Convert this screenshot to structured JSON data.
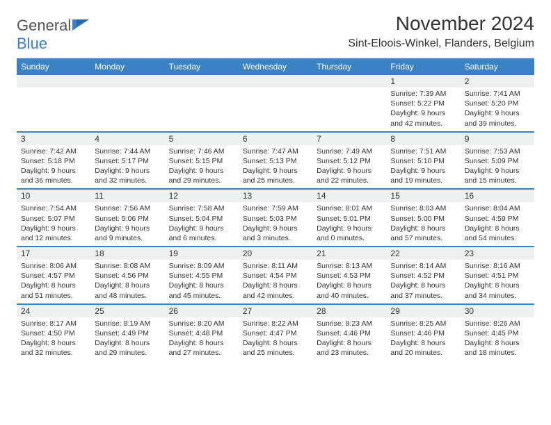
{
  "logo": {
    "text_general": "General",
    "text_blue": "Blue"
  },
  "title": "November 2024",
  "location": "Sint-Eloois-Winkel, Flanders, Belgium",
  "colors": {
    "header_blue": "#3b82c4",
    "shade": "#eef0f0",
    "text": "#333333",
    "logo_gray": "#555555",
    "logo_blue": "#3b7fc4"
  },
  "days": [
    "Sunday",
    "Monday",
    "Tuesday",
    "Wednesday",
    "Thursday",
    "Friday",
    "Saturday"
  ],
  "weeks": [
    {
      "nums": [
        "",
        "",
        "",
        "",
        "",
        "1",
        "2"
      ],
      "cells": [
        "",
        "",
        "",
        "",
        "",
        "Sunrise: 7:39 AM\nSunset: 5:22 PM\nDaylight: 9 hours and 42 minutes.",
        "Sunrise: 7:41 AM\nSunset: 5:20 PM\nDaylight: 9 hours and 39 minutes."
      ]
    },
    {
      "nums": [
        "3",
        "4",
        "5",
        "6",
        "7",
        "8",
        "9"
      ],
      "cells": [
        "Sunrise: 7:42 AM\nSunset: 5:18 PM\nDaylight: 9 hours and 36 minutes.",
        "Sunrise: 7:44 AM\nSunset: 5:17 PM\nDaylight: 9 hours and 32 minutes.",
        "Sunrise: 7:46 AM\nSunset: 5:15 PM\nDaylight: 9 hours and 29 minutes.",
        "Sunrise: 7:47 AM\nSunset: 5:13 PM\nDaylight: 9 hours and 25 minutes.",
        "Sunrise: 7:49 AM\nSunset: 5:12 PM\nDaylight: 9 hours and 22 minutes.",
        "Sunrise: 7:51 AM\nSunset: 5:10 PM\nDaylight: 9 hours and 19 minutes.",
        "Sunrise: 7:53 AM\nSunset: 5:09 PM\nDaylight: 9 hours and 15 minutes."
      ]
    },
    {
      "nums": [
        "10",
        "11",
        "12",
        "13",
        "14",
        "15",
        "16"
      ],
      "cells": [
        "Sunrise: 7:54 AM\nSunset: 5:07 PM\nDaylight: 9 hours and 12 minutes.",
        "Sunrise: 7:56 AM\nSunset: 5:06 PM\nDaylight: 9 hours and 9 minutes.",
        "Sunrise: 7:58 AM\nSunset: 5:04 PM\nDaylight: 9 hours and 6 minutes.",
        "Sunrise: 7:59 AM\nSunset: 5:03 PM\nDaylight: 9 hours and 3 minutes.",
        "Sunrise: 8:01 AM\nSunset: 5:01 PM\nDaylight: 9 hours and 0 minutes.",
        "Sunrise: 8:03 AM\nSunset: 5:00 PM\nDaylight: 8 hours and 57 minutes.",
        "Sunrise: 8:04 AM\nSunset: 4:59 PM\nDaylight: 8 hours and 54 minutes."
      ]
    },
    {
      "nums": [
        "17",
        "18",
        "19",
        "20",
        "21",
        "22",
        "23"
      ],
      "cells": [
        "Sunrise: 8:06 AM\nSunset: 4:57 PM\nDaylight: 8 hours and 51 minutes.",
        "Sunrise: 8:08 AM\nSunset: 4:56 PM\nDaylight: 8 hours and 48 minutes.",
        "Sunrise: 8:09 AM\nSunset: 4:55 PM\nDaylight: 8 hours and 45 minutes.",
        "Sunrise: 8:11 AM\nSunset: 4:54 PM\nDaylight: 8 hours and 42 minutes.",
        "Sunrise: 8:13 AM\nSunset: 4:53 PM\nDaylight: 8 hours and 40 minutes.",
        "Sunrise: 8:14 AM\nSunset: 4:52 PM\nDaylight: 8 hours and 37 minutes.",
        "Sunrise: 8:16 AM\nSunset: 4:51 PM\nDaylight: 8 hours and 34 minutes."
      ]
    },
    {
      "nums": [
        "24",
        "25",
        "26",
        "27",
        "28",
        "29",
        "30"
      ],
      "cells": [
        "Sunrise: 8:17 AM\nSunset: 4:50 PM\nDaylight: 8 hours and 32 minutes.",
        "Sunrise: 8:19 AM\nSunset: 4:49 PM\nDaylight: 8 hours and 29 minutes.",
        "Sunrise: 8:20 AM\nSunset: 4:48 PM\nDaylight: 8 hours and 27 minutes.",
        "Sunrise: 8:22 AM\nSunset: 4:47 PM\nDaylight: 8 hours and 25 minutes.",
        "Sunrise: 8:23 AM\nSunset: 4:46 PM\nDaylight: 8 hours and 23 minutes.",
        "Sunrise: 8:25 AM\nSunset: 4:46 PM\nDaylight: 8 hours and 20 minutes.",
        "Sunrise: 8:26 AM\nSunset: 4:45 PM\nDaylight: 8 hours and 18 minutes."
      ]
    }
  ]
}
